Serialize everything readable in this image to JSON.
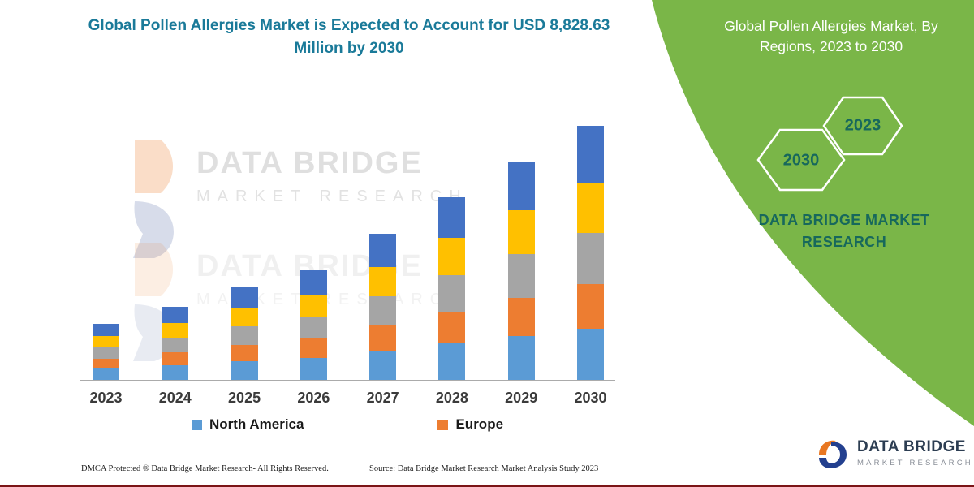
{
  "chart_data": {
    "type": "bar",
    "stacked": true,
    "title": "Global Pollen Allergies Market is Expected to Account for USD 8,828.63 Million by 2030",
    "categories": [
      "2023",
      "2024",
      "2025",
      "2026",
      "2027",
      "2028",
      "2029",
      "2030"
    ],
    "series": [
      {
        "name": "North America",
        "color": "#5B9BD5",
        "values": [
          392,
          505,
          645,
          757,
          1009,
          1261,
          1514,
          1766
        ]
      },
      {
        "name": "Europe",
        "color": "#ED7D31",
        "values": [
          336,
          448,
          561,
          673,
          897,
          1121,
          1345,
          1570
        ]
      },
      {
        "name": "",
        "color": "#A5A5A5",
        "values": [
          392,
          505,
          645,
          757,
          1009,
          1261,
          1514,
          1766
        ]
      },
      {
        "name": "",
        "color": "#FFC000",
        "values": [
          392,
          505,
          645,
          757,
          1009,
          1290,
          1514,
          1766
        ]
      },
      {
        "name": "",
        "color": "#4472C4",
        "values": [
          448,
          589,
          729,
          869,
          1149,
          1430,
          1710,
          1960.63
        ]
      }
    ],
    "totals": [
      1960,
      2552,
      3225,
      3813,
      5073,
      6363,
      7597,
      8828.63
    ],
    "units": "USD Million",
    "xlabel": "",
    "ylabel": "",
    "ylim": [
      0,
      9000
    ],
    "grid": false,
    "legend": {
      "position": "bottom",
      "entries": [
        "North America",
        "Europe"
      ]
    }
  },
  "watermark": {
    "line1": "DATA BRIDGE",
    "line2": "MARKET RESEARCH"
  },
  "side_panel": {
    "title": "Global Pollen Allergies Market, By Regions, 2023 to 2030",
    "hex_left": "2030",
    "hex_right": "2023",
    "brand": "DATA BRIDGE MARKET RESEARCH",
    "bg_color": "#7AB648",
    "text_color": "#17685C"
  },
  "footer": {
    "dmca": "DMCA Protected ® Data Bridge Market Research-  All Rights Reserved.",
    "source": "Source: Data Bridge Market Research  Market Analysis Study 2023"
  },
  "logo": {
    "name": "DATA BRIDGE",
    "sub": "MARKET RESEARCH"
  }
}
